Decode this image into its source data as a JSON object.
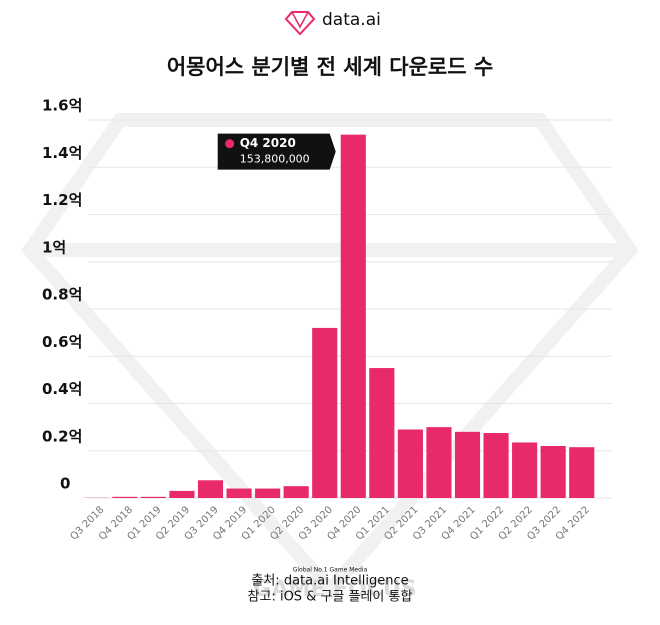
{
  "logo": "data.ai",
  "chart_data": {
    "type": "bar",
    "title": "어몽어스 분기별 전 세계 다운로드 수",
    "categories": [
      "Q3 2018",
      "Q4 2018",
      "Q1 2019",
      "Q2 2019",
      "Q3 2019",
      "Q4 2019",
      "Q1 2020",
      "Q2 2020",
      "Q3 2020",
      "Q4 2020",
      "Q1 2021",
      "Q2 2021",
      "Q3 2021",
      "Q4 2021",
      "Q1 2022",
      "Q2 2022",
      "Q3 2022",
      "Q4 2022"
    ],
    "values": [
      0.001,
      0.005,
      0.005,
      0.03,
      0.075,
      0.04,
      0.04,
      0.05,
      0.72,
      1.538,
      0.55,
      0.29,
      0.3,
      0.28,
      0.275,
      0.235,
      0.22,
      0.215
    ],
    "color": "#e8296a",
    "ylim": [
      0,
      1.6
    ],
    "yticks": [
      0,
      {
        "value": 0.2,
        "label": "0.2억"
      },
      {
        "value": 0.4,
        "label": "0.4억"
      },
      {
        "value": 0.6,
        "label": "0.6억"
      },
      {
        "value": 0.8,
        "label": "0.8억"
      },
      {
        "value": 1,
        "label": "1억"
      },
      {
        "value": 1.2,
        "label": "1.2억"
      },
      {
        "value": 1.4,
        "label": "1.4억"
      },
      {
        "value": 1.6,
        "label": "1.6억"
      }
    ],
    "grid": true,
    "tooltip": {
      "index": 9,
      "title": "Q4 2020",
      "text": "153,800,000"
    },
    "source": "출처: data.ai Intelligence",
    "note": "참고: iOS & 구글 플레이 통합"
  },
  "watermark": {
    "tagline": "Global No.1 Game Media",
    "brand": "GAME FOCUS"
  }
}
